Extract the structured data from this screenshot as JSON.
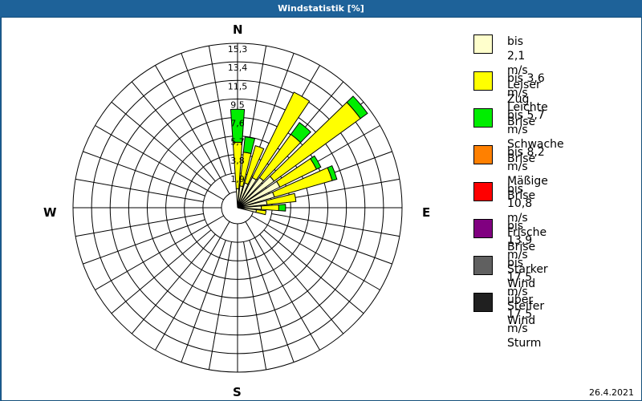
{
  "window": {
    "title": "Windstatistik [%]"
  },
  "compass": {
    "n": "N",
    "e": "E",
    "s": "S",
    "w": "W"
  },
  "footer": {
    "date": "26.4.2021"
  },
  "legend": [
    {
      "range": "bis 2,1 m/s",
      "name": "Leiser Zug",
      "color": "#ffffcc"
    },
    {
      "range": "bis 3,6 m/s",
      "name": "Leichte Brise",
      "color": "#ffff00"
    },
    {
      "range": "bis 5,7 m/s",
      "name": "Schwache Brise",
      "color": "#00ee00"
    },
    {
      "range": "bis 8,2 m/s",
      "name": "Mäßige Brise",
      "color": "#ff8000"
    },
    {
      "range": "bis 10,8 m/s",
      "name": "Frische Brise",
      "color": "#ff0000"
    },
    {
      "range": "bis 13,9 m/s",
      "name": "Starker Wind",
      "color": "#800080"
    },
    {
      "range": "bis 17,5 m/s",
      "name": "Steifer Wind",
      "color": "#606060"
    },
    {
      "range": "über 17,5 m/s",
      "name": "Sturm",
      "color": "#202020"
    }
  ],
  "chart_data": {
    "type": "wind-rose",
    "title": "Windstatistik [%]",
    "radial_ticks": [
      "1,9",
      "3,8",
      "5,7",
      "7,6",
      "9,5",
      "11,5",
      "13,4",
      "15,3"
    ],
    "rmax": 15.3,
    "directions_deg": [
      0,
      10,
      20,
      30,
      40,
      50,
      60,
      70,
      80,
      90,
      100
    ],
    "series": [
      {
        "name": "bis 2,1 m/s",
        "values": [
          0.3,
          0.6,
          1.0,
          1.8,
          2.2,
          3.0,
          3.2,
          2.3,
          1.4,
          0.8,
          0.3
        ]
      },
      {
        "name": "bis 3,6 m/s",
        "values": [
          4.8,
          3.5,
          4.0,
          9.8,
          5.5,
          11.0,
          4.2,
          6.2,
          3.0,
          1.8,
          1.0
        ]
      },
      {
        "name": "bis 5,7 m/s",
        "values": [
          3.4,
          1.6,
          0,
          0,
          1.5,
          0.9,
          0.5,
          0.5,
          0,
          0.7,
          0
        ]
      }
    ],
    "grid": true
  }
}
